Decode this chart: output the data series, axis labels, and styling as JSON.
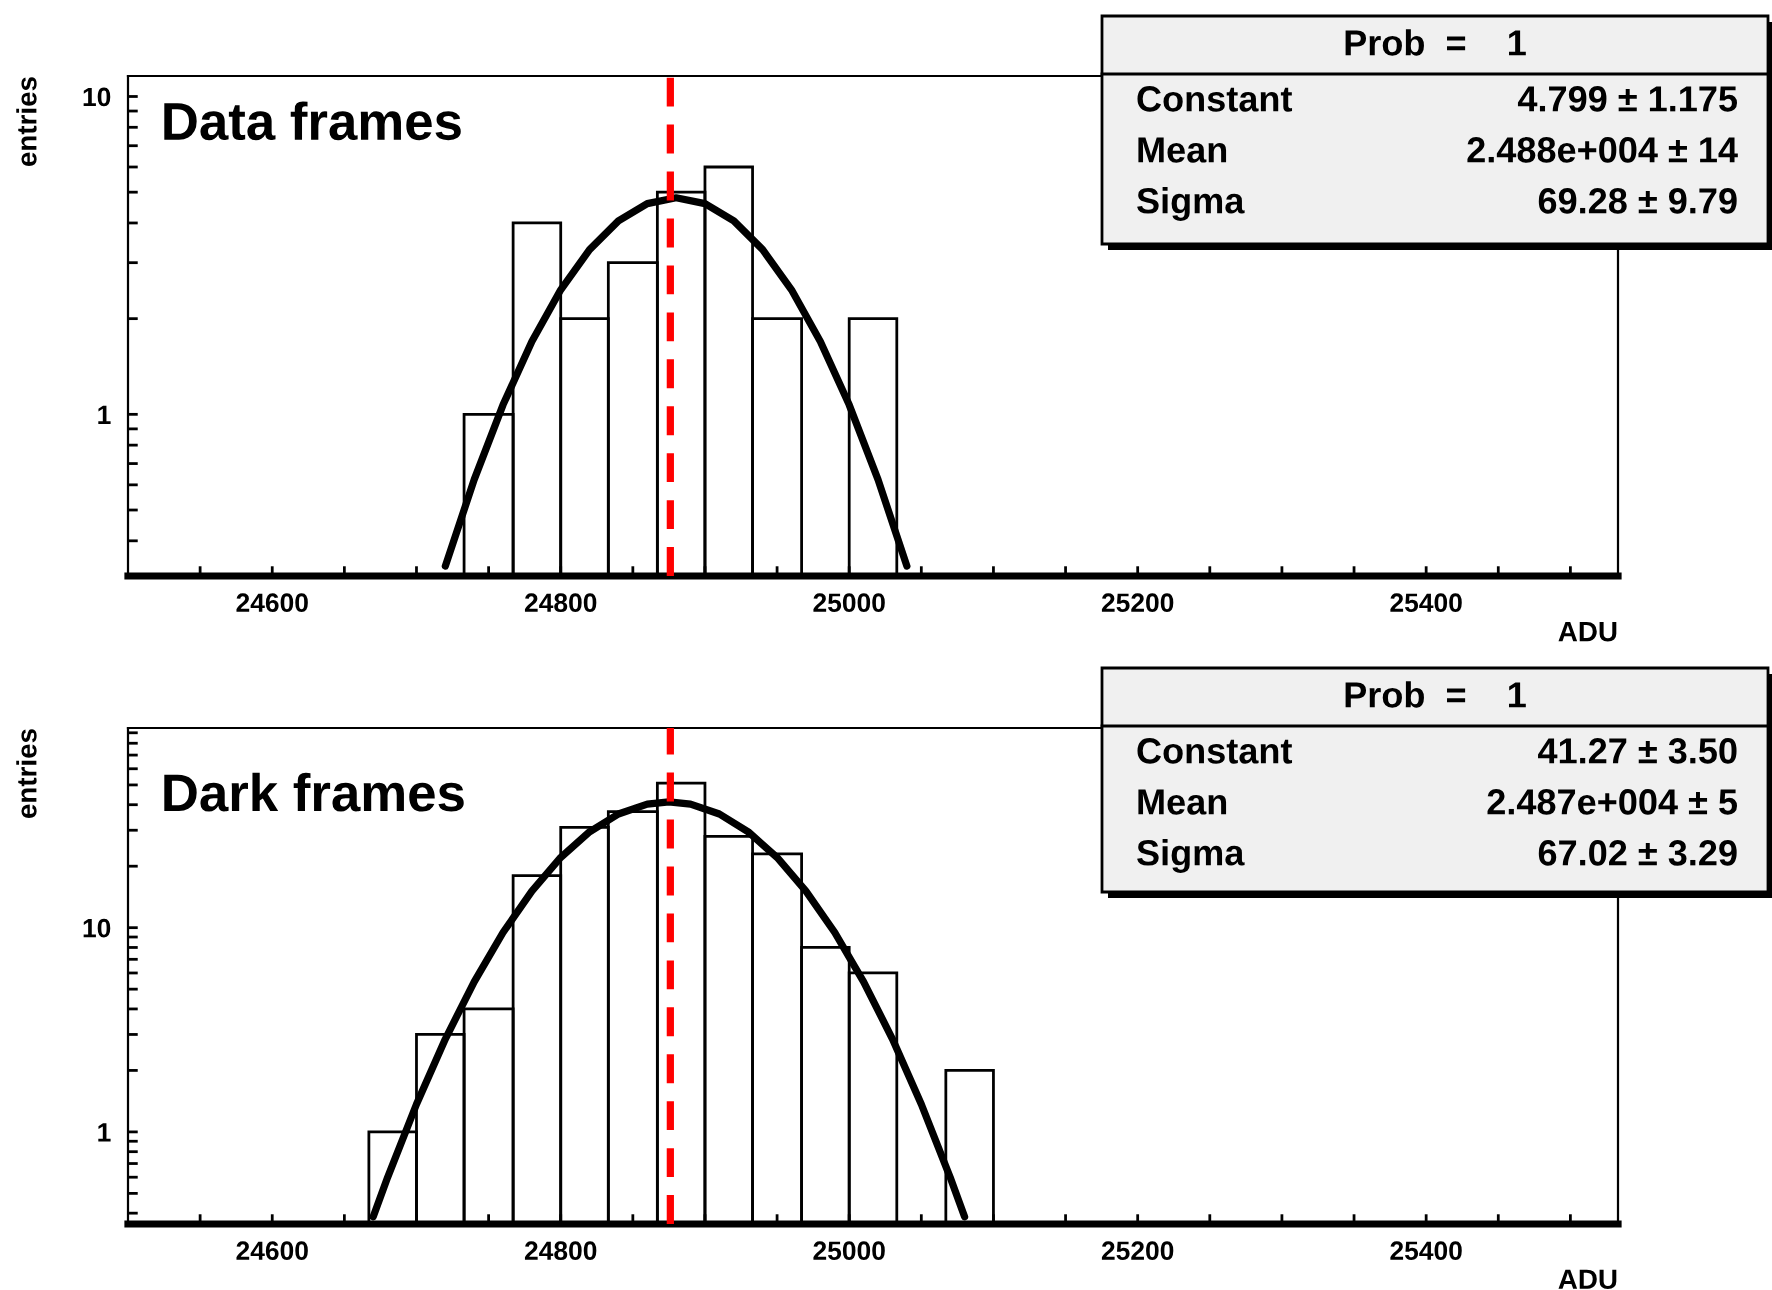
{
  "chart_data": [
    {
      "type": "histogram",
      "xlabel": "ADU",
      "ylabel": "entries",
      "log": "y",
      "xlim": [
        24500,
        25533
      ],
      "ylim": [
        0.31,
        11.6
      ],
      "xticks": [
        {
          "value": 24550,
          "label": null
        },
        24600,
        {
          "value": 24650,
          "label": null
        },
        {
          "value": 24700,
          "label": null
        },
        {
          "value": 24750,
          "label": null
        },
        24800,
        {
          "value": 24850,
          "label": null
        },
        {
          "value": 24900,
          "label": null
        },
        {
          "value": 24950,
          "label": null
        },
        25000,
        {
          "value": 25050,
          "label": null
        },
        {
          "value": 25100,
          "label": null
        },
        {
          "value": 25150,
          "label": null
        },
        25200,
        {
          "value": 25250,
          "label": null
        },
        {
          "value": 25300,
          "label": null
        },
        {
          "value": 25350,
          "label": null
        },
        25400,
        {
          "value": 25450,
          "label": null
        },
        {
          "value": 25500,
          "label": null
        }
      ],
      "yticks": [
        {
          "value": 0.4,
          "label": null
        },
        {
          "value": 0.5,
          "label": null
        },
        {
          "value": 0.6,
          "label": null
        },
        {
          "value": 0.7,
          "label": null
        },
        {
          "value": 0.8,
          "label": null
        },
        {
          "value": 0.9,
          "label": null
        },
        1,
        {
          "value": 2,
          "label": null
        },
        {
          "value": 3,
          "label": null
        },
        {
          "value": 4,
          "label": null
        },
        {
          "value": 5,
          "label": null
        },
        {
          "value": 6,
          "label": null
        },
        {
          "value": 7,
          "label": null
        },
        {
          "value": 8,
          "label": null
        },
        {
          "value": 9,
          "label": null
        },
        10
      ],
      "bins": [
        24733,
        24767,
        24800,
        24833,
        24867,
        24900,
        24933,
        24967,
        25000,
        25033
      ],
      "values": [
        1,
        4,
        2,
        3,
        5,
        6,
        2,
        null,
        2
      ],
      "color": "#000000",
      "series": [
        {
          "type": "line",
          "color": "#000000",
          "x": [
            24720,
            24740,
            24760,
            24780,
            24800,
            24820,
            24840,
            24860,
            24880,
            24900,
            24920,
            24940,
            24960,
            24980,
            25000,
            25020,
            25040
          ],
          "values": [
            0.333,
            0.623,
            1.071,
            1.694,
            2.464,
            3.298,
            4.062,
            4.603,
            4.799,
            4.603,
            4.062,
            3.298,
            2.464,
            1.694,
            1.071,
            0.623,
            0.333
          ]
        }
      ],
      "ref_lines": [
        {
          "axis": "x",
          "value": 24876,
          "color": "#ff0000",
          "line_style": "dashed"
        }
      ],
      "annotations": [
        "Data frames",
        "Prob  =    1",
        "Constant",
        "4.799 ± 1.175",
        "Mean",
        "2.488e+004 ± 14",
        "Sigma",
        "69.28 ± 9.79"
      ]
    },
    {
      "type": "histogram",
      "xlabel": "ADU",
      "ylabel": "entries",
      "log": "y",
      "xlim": [
        24500,
        25533
      ],
      "ylim": [
        0.354,
        95
      ],
      "xticks": [
        {
          "value": 24550,
          "label": null
        },
        24600,
        {
          "value": 24650,
          "label": null
        },
        {
          "value": 24700,
          "label": null
        },
        {
          "value": 24750,
          "label": null
        },
        24800,
        {
          "value": 24850,
          "label": null
        },
        {
          "value": 24900,
          "label": null
        },
        {
          "value": 24950,
          "label": null
        },
        25000,
        {
          "value": 25050,
          "label": null
        },
        {
          "value": 25100,
          "label": null
        },
        {
          "value": 25150,
          "label": null
        },
        25200,
        {
          "value": 25250,
          "label": null
        },
        {
          "value": 25300,
          "label": null
        },
        {
          "value": 25350,
          "label": null
        },
        25400,
        {
          "value": 25450,
          "label": null
        },
        {
          "value": 25500,
          "label": null
        }
      ],
      "yticks": [
        {
          "value": 0.4,
          "label": null
        },
        {
          "value": 0.5,
          "label": null
        },
        {
          "value": 0.6,
          "label": null
        },
        {
          "value": 0.7,
          "label": null
        },
        {
          "value": 0.8,
          "label": null
        },
        {
          "value": 0.9,
          "label": null
        },
        1,
        {
          "value": 2,
          "label": null
        },
        {
          "value": 3,
          "label": null
        },
        {
          "value": 4,
          "label": null
        },
        {
          "value": 5,
          "label": null
        },
        {
          "value": 6,
          "label": null
        },
        {
          "value": 7,
          "label": null
        },
        {
          "value": 8,
          "label": null
        },
        {
          "value": 9,
          "label": null
        },
        10,
        {
          "value": 20,
          "label": null
        },
        {
          "value": 30,
          "label": null
        },
        {
          "value": 40,
          "label": null
        },
        {
          "value": 50,
          "label": null
        },
        {
          "value": 60,
          "label": null
        },
        {
          "value": 70,
          "label": null
        },
        {
          "value": 80,
          "label": null
        },
        {
          "value": 90,
          "label": null
        }
      ],
      "bins": [
        24667,
        24700,
        24733,
        24767,
        24800,
        24833,
        24867,
        24900,
        24933,
        24967,
        25000,
        25033,
        25067,
        25100
      ],
      "values": [
        1,
        3,
        4,
        18,
        31,
        37,
        51,
        28,
        23,
        8,
        6,
        null,
        2
      ],
      "color": "#000000",
      "series": [
        {
          "type": "line",
          "color": "#000000",
          "x": [
            24670,
            24680,
            24700,
            24720,
            24740,
            24760,
            24780,
            24800,
            24820,
            24840,
            24860,
            24875,
            24890,
            24910,
            24930,
            24950,
            24970,
            24990,
            25010,
            25030,
            25050,
            25070,
            25080
          ],
          "values": [
            0.384,
            0.599,
            1.366,
            2.85,
            5.43,
            9.47,
            15.11,
            22.07,
            29.47,
            36.01,
            40.25,
            41.27,
            40.25,
            36.01,
            29.47,
            22.07,
            15.11,
            9.47,
            5.43,
            2.85,
            1.366,
            0.599,
            0.384
          ]
        }
      ],
      "ref_lines": [
        {
          "axis": "x",
          "value": 24876,
          "color": "#ff0000",
          "line_style": "dashed"
        }
      ],
      "annotations": [
        "Dark frames",
        "Prob  =    1",
        "Constant",
        "41.27 ± 3.50",
        "Mean",
        "2.487e+004 ± 5",
        "Sigma",
        "67.02 ± 3.29"
      ]
    }
  ]
}
